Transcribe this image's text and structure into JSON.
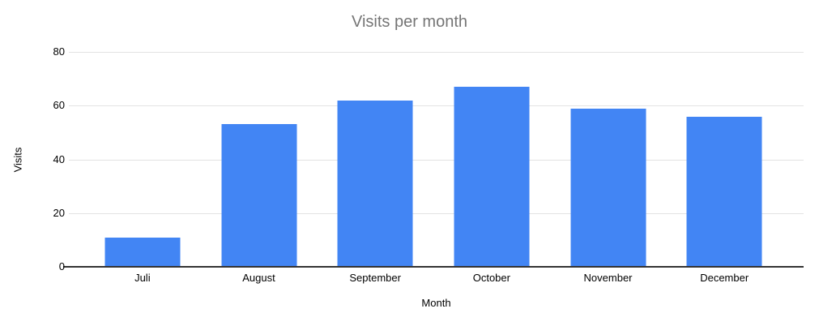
{
  "chart_data": {
    "type": "bar",
    "title": "Visits per month",
    "xlabel": "Month",
    "ylabel": "Visits",
    "categories": [
      "Juli",
      "August",
      "September",
      "October",
      "November",
      "December"
    ],
    "values": [
      11,
      53,
      62,
      67,
      59,
      56
    ],
    "ylim": [
      0,
      80
    ],
    "yticks": [
      0,
      20,
      40,
      60,
      80
    ],
    "grid": true,
    "legend_position": "none",
    "bar_color": "#4285f4"
  },
  "colors": {
    "bar": "#4285f4",
    "title_text": "#757575",
    "axis_text": "#000000",
    "gridline": "#e3e3e3",
    "baseline": "#333333",
    "background": "#ffffff"
  }
}
